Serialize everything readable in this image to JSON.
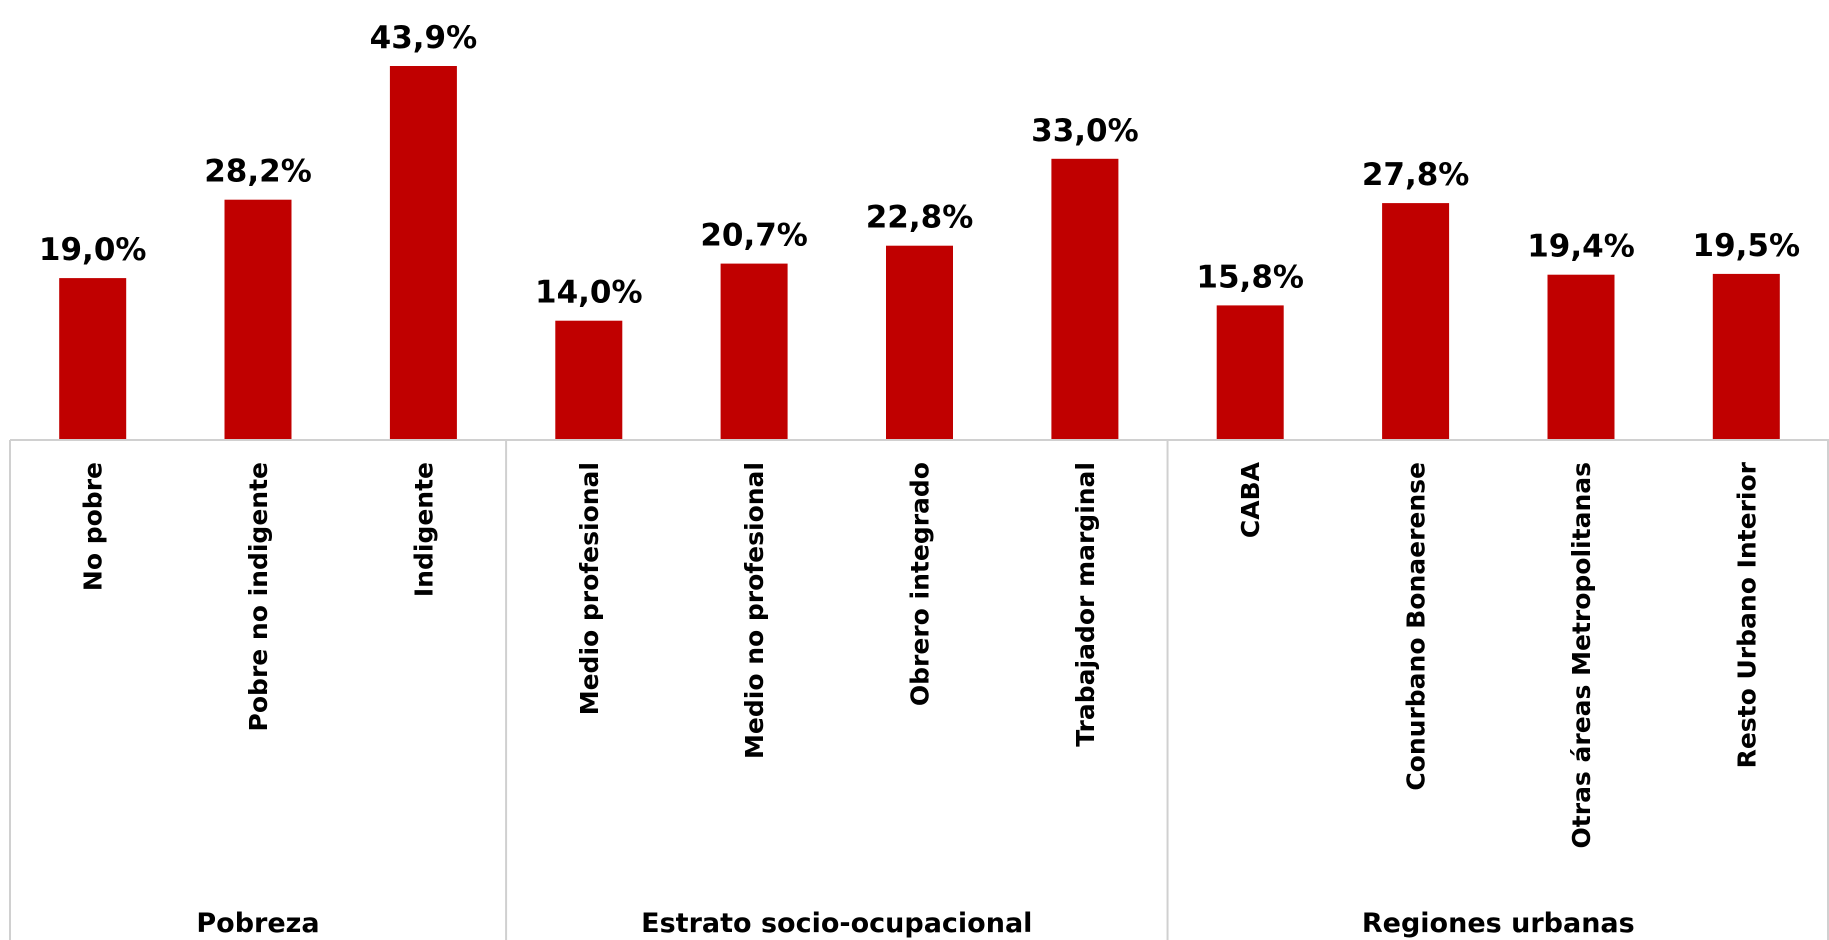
{
  "chart_data": {
    "type": "bar",
    "title": "",
    "xlabel": "",
    "ylabel": "",
    "ylim": [
      0,
      45
    ],
    "grid": false,
    "legend": "none",
    "bar_color": "#C00000",
    "groups": [
      {
        "label": "Pobreza",
        "categories": [
          "No pobre",
          "Pobre no indigente",
          "Indigente"
        ]
      },
      {
        "label": "Estrato socio-ocupacional",
        "categories": [
          "Medio profesional",
          "Medio no profesional",
          "Obrero integrado",
          "Trabajador marginal"
        ]
      },
      {
        "label": "Regiones urbanas",
        "categories": [
          "CABA",
          "Conurbano Bonaerense",
          "Otras áreas Metropolitanas",
          "Resto Urbano Interior"
        ]
      }
    ],
    "categories": [
      "No pobre",
      "Pobre no indigente",
      "Indigente",
      "Medio profesional",
      "Medio no profesional",
      "Obrero integrado",
      "Trabajador marginal",
      "CABA",
      "Conurbano Bonaerense",
      "Otras áreas Metropolitanas",
      "Resto Urbano Interior"
    ],
    "values": [
      19.0,
      28.2,
      43.9,
      14.0,
      20.7,
      22.8,
      33.0,
      15.8,
      27.8,
      19.4,
      19.5
    ],
    "value_labels": [
      "19,0%",
      "28,2%",
      "43,9%",
      "14,0%",
      "20,7%",
      "22,8%",
      "33,0%",
      "15,8%",
      "27,8%",
      "19,4%",
      "19,5%"
    ]
  }
}
